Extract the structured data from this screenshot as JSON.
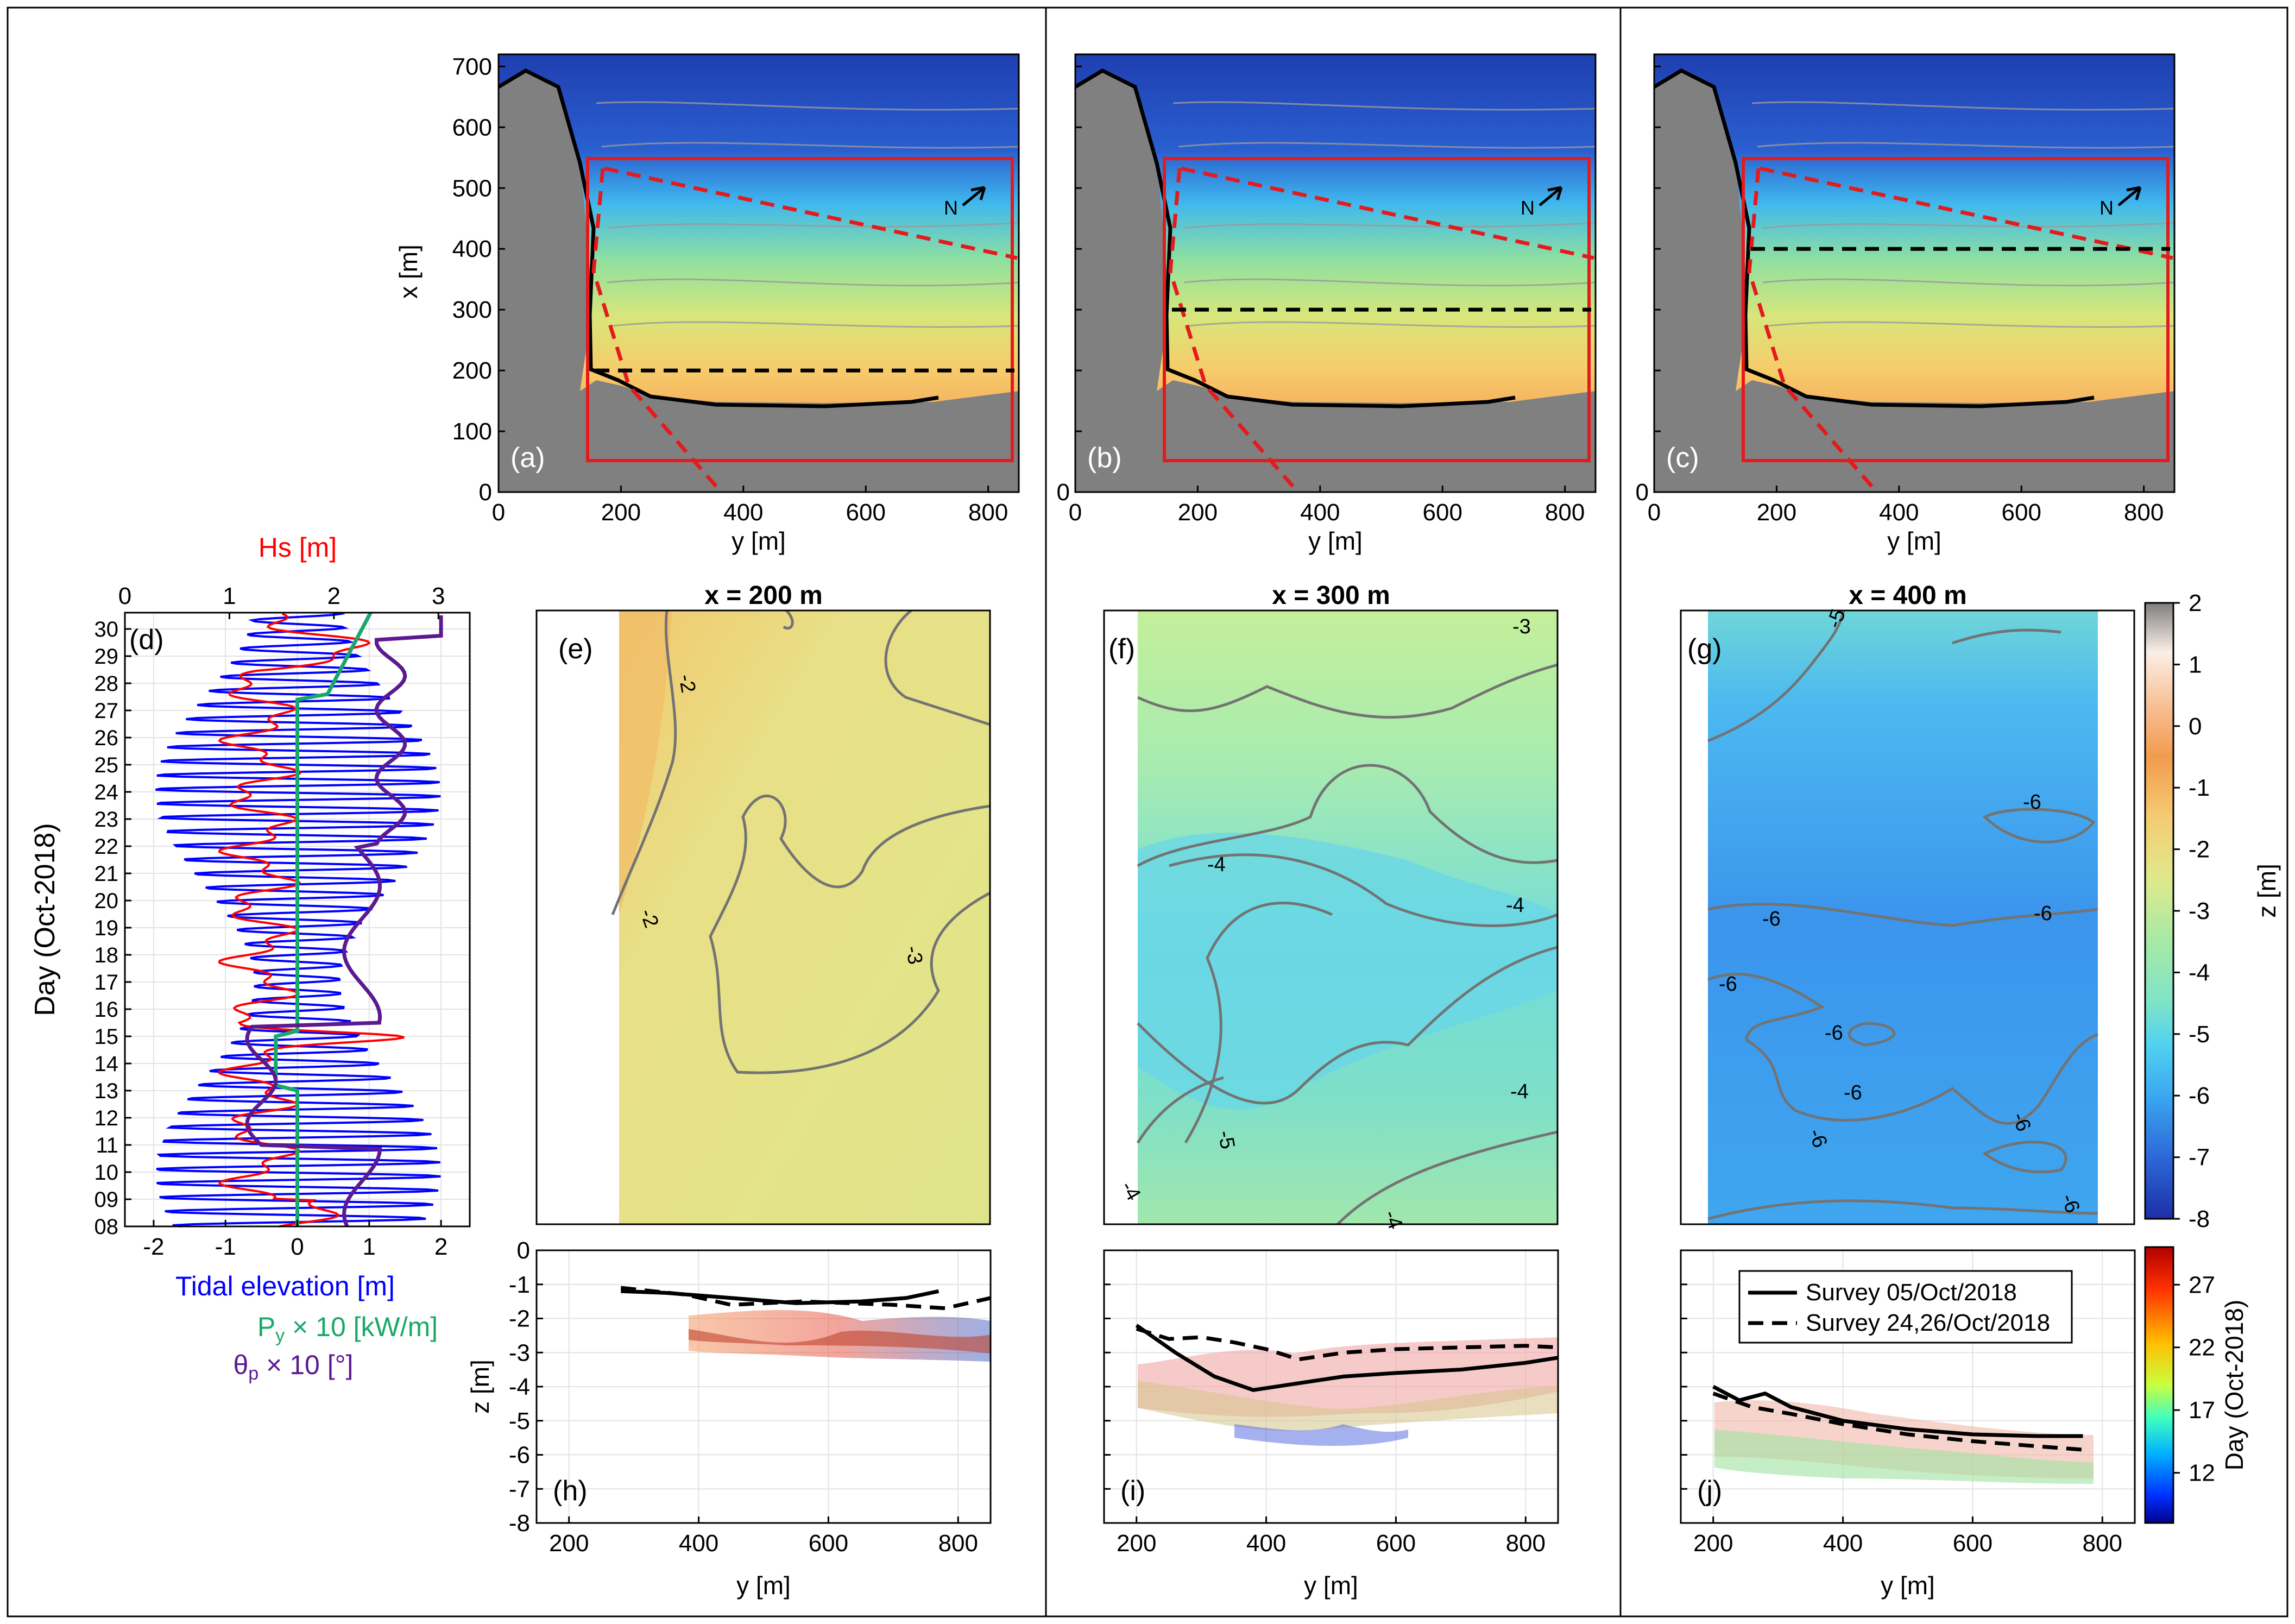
{
  "figure": {
    "labels": {
      "hs_axis": "Hs [m]",
      "tide_axis": "Tidal elevation [m]",
      "py_axis": "P",
      "py_sub": "y",
      "py_rest": " × 10 [kW/m]",
      "theta_axis": "θ",
      "theta_sub": "p",
      "theta_rest": " × 10 [°]",
      "day_axis": "Day (Oct-2018)",
      "x_axis": "x [m]",
      "y_axis": "y [m]",
      "z_axis": "z [m]",
      "north": "N",
      "cbar1_label": "z [m]",
      "cbar2_label": "Day (Oct-2018)"
    },
    "colors": {
      "hs": "#ff0000",
      "tide": "#0000ff",
      "py": "#1aa86a",
      "theta": "#5b1a8f",
      "frame": "#e41a1c",
      "land": "#808080"
    }
  },
  "chart_data": [
    {
      "id": "map-panels",
      "type": "heatmap",
      "title": "",
      "xlabel": "y [m]",
      "ylabel": "x [m]",
      "xlim": [
        0,
        850
      ],
      "ylim": [
        0,
        720
      ],
      "xticks": [
        "0",
        "200",
        "400",
        "600",
        "800"
      ],
      "yticks": [
        "0",
        "100",
        "200",
        "300",
        "400",
        "500",
        "600",
        "700"
      ],
      "panels": [
        {
          "label": "(a)",
          "transect_x": 200
        },
        {
          "label": "(b)",
          "transect_x": 300
        },
        {
          "label": "(c)",
          "transect_x": 400
        }
      ]
    },
    {
      "id": "forcing",
      "type": "line",
      "label": "(d)",
      "ylabel": "Day (Oct-2018)",
      "day_ticks": [
        "08",
        "09",
        "10",
        "11",
        "12",
        "13",
        "14",
        "15",
        "16",
        "17",
        "18",
        "19",
        "20",
        "21",
        "22",
        "23",
        "24",
        "25",
        "26",
        "27",
        "28",
        "29",
        "30"
      ],
      "bottom_axis": {
        "label": "Tidal elevation [m]",
        "lim": [
          -2.4,
          2.4
        ],
        "ticks": [
          "-2",
          "-1",
          "0",
          "1",
          "2"
        ]
      },
      "top_axis": {
        "label": "Hs [m]",
        "lim": [
          0,
          3.3
        ],
        "ticks": [
          "0",
          "1",
          "2",
          "3"
        ]
      },
      "series": [
        {
          "name": "Tidal elevation [m]",
          "axis": "bottom"
        },
        {
          "name": "Hs [m]",
          "axis": "top"
        },
        {
          "name": "Py × 10 [kW/m]",
          "axis": "bottom"
        },
        {
          "name": "θp × 10 [°]",
          "axis": "bottom"
        }
      ]
    },
    {
      "id": "hovmoller",
      "type": "heatmap",
      "panels": [
        {
          "label": "(e)",
          "title": "x = 200 m",
          "contours": [
            "-2",
            "-2",
            "-3"
          ]
        },
        {
          "label": "(f)",
          "title": "x = 300 m",
          "contours": [
            "-3",
            "-4",
            "-4",
            "-4",
            "-5",
            "-4",
            "-4"
          ]
        },
        {
          "label": "(g)",
          "title": "x = 400 m",
          "contours": [
            "-5",
            "-6",
            "-6",
            "-6",
            "-6",
            "-6",
            "-6",
            "-6",
            "-6",
            "-6"
          ]
        }
      ],
      "colorbar": {
        "label": "z [m]",
        "range": [
          -8,
          2
        ],
        "ticks": [
          "2",
          "1",
          "0",
          "-1",
          "-2",
          "-3",
          "-4",
          "-5",
          "-6",
          "-7",
          "-8"
        ]
      }
    },
    {
      "id": "profiles",
      "type": "line",
      "xlabel": "y [m]",
      "ylabel": "z [m]",
      "ylim": [
        -8,
        0
      ],
      "yticks": [
        "0",
        "-1",
        "-2",
        "-3",
        "-4",
        "-5",
        "-6",
        "-7",
        "-8"
      ],
      "xticks": [
        "200",
        "400",
        "600",
        "800"
      ],
      "panels": [
        {
          "label": "(h)",
          "xlim": [
            150,
            850
          ],
          "survey1": [
            [
              280,
              -1.2
            ],
            [
              350,
              -1.25
            ],
            [
              450,
              -1.4
            ],
            [
              550,
              -1.55
            ],
            [
              650,
              -1.5
            ],
            [
              720,
              -1.4
            ],
            [
              770,
              -1.2
            ]
          ],
          "survey2": [
            [
              280,
              -1.1
            ],
            [
              380,
              -1.3
            ],
            [
              450,
              -1.6
            ],
            [
              560,
              -1.5
            ],
            [
              700,
              -1.6
            ],
            [
              780,
              -1.7
            ],
            [
              850,
              -1.4
            ]
          ]
        },
        {
          "label": "(i)",
          "xlim": [
            150,
            850
          ],
          "survey1": [
            [
              200,
              -2.2
            ],
            [
              260,
              -3.0
            ],
            [
              320,
              -3.7
            ],
            [
              380,
              -4.1
            ],
            [
              450,
              -3.9
            ],
            [
              520,
              -3.7
            ],
            [
              600,
              -3.6
            ],
            [
              700,
              -3.5
            ],
            [
              800,
              -3.3
            ],
            [
              850,
              -3.15
            ]
          ],
          "survey2": [
            [
              200,
              -2.3
            ],
            [
              250,
              -2.6
            ],
            [
              300,
              -2.55
            ],
            [
              350,
              -2.7
            ],
            [
              400,
              -2.9
            ],
            [
              450,
              -3.2
            ],
            [
              520,
              -3.0
            ],
            [
              600,
              -2.9
            ],
            [
              700,
              -2.85
            ],
            [
              800,
              -2.8
            ],
            [
              850,
              -2.85
            ]
          ]
        },
        {
          "label": "(j)",
          "xlim": [
            150,
            850
          ],
          "survey1": [
            [
              200,
              -4.0
            ],
            [
              240,
              -4.4
            ],
            [
              280,
              -4.2
            ],
            [
              320,
              -4.6
            ],
            [
              400,
              -5.0
            ],
            [
              500,
              -5.25
            ],
            [
              600,
              -5.4
            ],
            [
              700,
              -5.45
            ],
            [
              770,
              -5.45
            ]
          ],
          "survey2": [
            [
              200,
              -4.2
            ],
            [
              260,
              -4.6
            ],
            [
              320,
              -4.8
            ],
            [
              400,
              -5.1
            ],
            [
              500,
              -5.4
            ],
            [
              600,
              -5.6
            ],
            [
              700,
              -5.75
            ],
            [
              770,
              -5.85
            ]
          ]
        }
      ],
      "legend": {
        "entries": [
          "Survey 05/Oct/2018",
          "Survey 24,26/Oct/2018"
        ],
        "placement": "top-right"
      },
      "colorbar": {
        "label": "Day (Oct-2018)",
        "range": [
          8,
          30
        ],
        "ticks": [
          "27",
          "22",
          "17",
          "12"
        ]
      }
    }
  ]
}
